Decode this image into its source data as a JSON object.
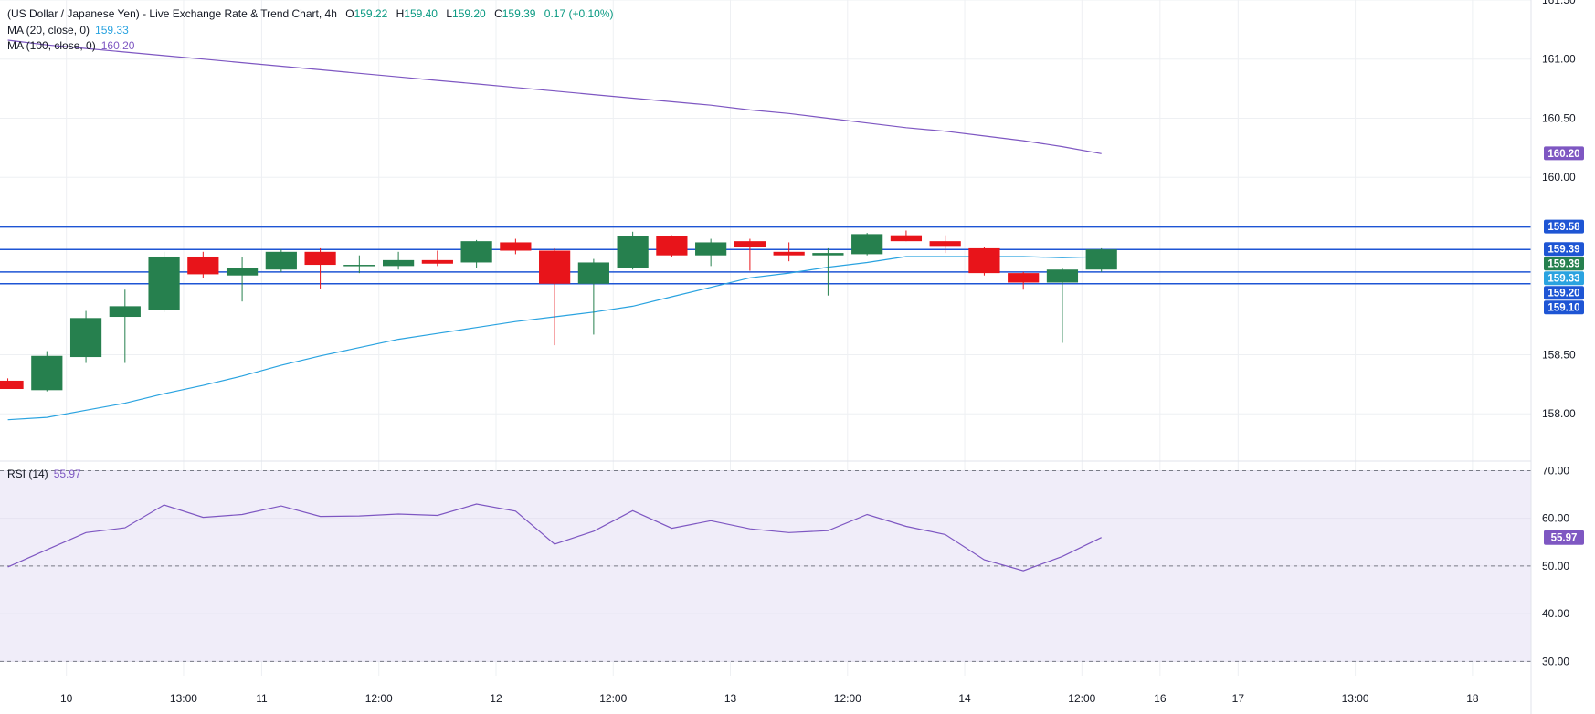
{
  "header": {
    "title": "(US Dollar / Japanese Yen) - Live Exchange Rate & Trend Chart, 4h",
    "ohlc": [
      {
        "label": "O",
        "value": "159.22"
      },
      {
        "label": "H",
        "value": "159.40"
      },
      {
        "label": "L",
        "value": "159.20"
      },
      {
        "label": "C",
        "value": "159.39"
      }
    ],
    "change": "0.17 (+0.10%)"
  },
  "indicators": {
    "ma20": {
      "label": "MA (20, close, 0)",
      "value": "159.33"
    },
    "ma100": {
      "label": "MA (100, close, 0)",
      "value": "160.20"
    },
    "rsi": {
      "label": "RSI (14)",
      "value": "55.97"
    }
  },
  "colors": {
    "up": "#26804e",
    "down": "#e8141a",
    "ma20": "#2aa3e0",
    "ma100": "#7e57c2",
    "rsi": "#7e57c2",
    "level_line": "#1e55d4",
    "grid": "#eef0f3",
    "rsi_band": "#f0edf9",
    "axis_text": "#131722"
  },
  "chart_data": [
    {
      "type": "candlestick",
      "title": "(US Dollar / Japanese Yen) - Live Exchange Rate & Trend Chart, 4h",
      "interval": "4h",
      "ylim": [
        157.6,
        161.5
      ],
      "y_ticks": [
        "161.50",
        "161.00",
        "160.50",
        "160.00",
        "158.50",
        "158.00"
      ],
      "x_ticks": [
        "10",
        "13:00",
        "11",
        "12:00",
        "12",
        "12:00",
        "13",
        "12:00",
        "14",
        "12:00",
        "16",
        "17",
        "13:00",
        "18"
      ],
      "x_tick_index": [
        1.5,
        4.5,
        6.5,
        9.5,
        12.5,
        15.5,
        18.5,
        21.5,
        24.5,
        27.5,
        29.5,
        31.5,
        34.5,
        37.5
      ],
      "x_index_range": [
        -0.2,
        39.0
      ],
      "candles": [
        {
          "o": 158.28,
          "h": 158.3,
          "l": 158.21,
          "c": 158.21
        },
        {
          "o": 158.2,
          "h": 158.53,
          "l": 158.19,
          "c": 158.49
        },
        {
          "o": 158.48,
          "h": 158.87,
          "l": 158.43,
          "c": 158.81
        },
        {
          "o": 158.82,
          "h": 159.05,
          "l": 158.43,
          "c": 158.91
        },
        {
          "o": 158.88,
          "h": 159.37,
          "l": 158.86,
          "c": 159.33
        },
        {
          "o": 159.33,
          "h": 159.37,
          "l": 159.15,
          "c": 159.18
        },
        {
          "o": 159.17,
          "h": 159.33,
          "l": 158.95,
          "c": 159.23
        },
        {
          "o": 159.22,
          "h": 159.39,
          "l": 159.2,
          "c": 159.37
        },
        {
          "o": 159.37,
          "h": 159.4,
          "l": 159.06,
          "c": 159.26
        },
        {
          "o": 159.26,
          "h": 159.34,
          "l": 159.19,
          "c": 159.26
        },
        {
          "o": 159.25,
          "h": 159.37,
          "l": 159.22,
          "c": 159.3
        },
        {
          "o": 159.3,
          "h": 159.38,
          "l": 159.25,
          "c": 159.27
        },
        {
          "o": 159.28,
          "h": 159.47,
          "l": 159.23,
          "c": 159.46
        },
        {
          "o": 159.45,
          "h": 159.48,
          "l": 159.35,
          "c": 159.38
        },
        {
          "o": 159.38,
          "h": 159.4,
          "l": 158.58,
          "c": 159.1
        },
        {
          "o": 159.1,
          "h": 159.31,
          "l": 158.67,
          "c": 159.28
        },
        {
          "o": 159.23,
          "h": 159.54,
          "l": 159.22,
          "c": 159.5
        },
        {
          "o": 159.5,
          "h": 159.51,
          "l": 159.33,
          "c": 159.34
        },
        {
          "o": 159.34,
          "h": 159.48,
          "l": 159.25,
          "c": 159.45
        },
        {
          "o": 159.46,
          "h": 159.48,
          "l": 159.21,
          "c": 159.41
        },
        {
          "o": 159.37,
          "h": 159.45,
          "l": 159.29,
          "c": 159.34
        },
        {
          "o": 159.34,
          "h": 159.4,
          "l": 159.0,
          "c": 159.36
        },
        {
          "o": 159.35,
          "h": 159.53,
          "l": 159.34,
          "c": 159.52
        },
        {
          "o": 159.51,
          "h": 159.55,
          "l": 159.46,
          "c": 159.46
        },
        {
          "o": 159.46,
          "h": 159.51,
          "l": 159.36,
          "c": 159.42
        },
        {
          "o": 159.4,
          "h": 159.41,
          "l": 159.17,
          "c": 159.19
        },
        {
          "o": 159.19,
          "h": 159.2,
          "l": 159.05,
          "c": 159.11
        },
        {
          "o": 159.11,
          "h": 159.23,
          "l": 158.6,
          "c": 159.22
        },
        {
          "o": 159.22,
          "h": 159.4,
          "l": 159.2,
          "c": 159.39
        }
      ],
      "series": [
        {
          "name": "MA (20, close, 0)",
          "values": [
            157.95,
            157.97,
            158.03,
            158.09,
            158.17,
            158.24,
            158.32,
            158.41,
            158.49,
            158.56,
            158.63,
            158.68,
            158.73,
            158.78,
            158.82,
            158.86,
            158.91,
            158.99,
            159.07,
            159.15,
            159.19,
            159.24,
            159.28,
            159.33,
            159.33,
            159.33,
            159.33,
            159.32,
            159.33
          ]
        },
        {
          "name": "MA (100, close, 0)",
          "values": [
            161.16,
            161.12,
            161.09,
            161.06,
            161.03,
            161.0,
            160.97,
            160.94,
            160.91,
            160.88,
            160.85,
            160.82,
            160.79,
            160.76,
            160.73,
            160.7,
            160.67,
            160.64,
            160.61,
            160.57,
            160.54,
            160.5,
            160.46,
            160.42,
            160.39,
            160.35,
            160.31,
            160.26,
            160.2
          ]
        }
      ],
      "horizontal_lines": [
        159.58,
        159.39,
        159.2,
        159.1
      ],
      "price_labels": [
        {
          "value": 160.2,
          "text": "160.20",
          "color": "#7e57c2"
        },
        {
          "value": 159.58,
          "text": "159.58",
          "color": "#1e55d4"
        },
        {
          "value": 159.39,
          "text": "159.39",
          "color": "#1e55d4"
        },
        {
          "value": 159.39,
          "text": "159.39",
          "color": "#26804e"
        },
        {
          "value": 159.33,
          "text": "159.33",
          "color": "#2aa3e0"
        },
        {
          "value": 159.2,
          "text": "159.20",
          "color": "#1e55d4"
        },
        {
          "value": 159.1,
          "text": "159.10",
          "color": "#1e55d4"
        }
      ]
    },
    {
      "type": "line",
      "title": "RSI (14)",
      "ylim": [
        27,
        72
      ],
      "y_ticks": [
        "70.00",
        "60.00",
        "50.00",
        "40.00",
        "30.00"
      ],
      "band": [
        30,
        70
      ],
      "dashed_levels": [
        70,
        50,
        30
      ],
      "series": [
        {
          "name": "RSI (14)",
          "values": [
            49.8,
            53.4,
            57.0,
            58.0,
            62.8,
            60.2,
            60.8,
            62.6,
            60.4,
            60.5,
            60.9,
            60.6,
            63.0,
            61.5,
            54.6,
            57.3,
            61.6,
            57.9,
            59.5,
            57.8,
            57.0,
            57.4,
            60.8,
            58.3,
            56.6,
            51.3,
            49.0,
            52.0,
            55.97
          ]
        }
      ],
      "last_label": {
        "text": "55.97",
        "color": "#7e57c2"
      }
    }
  ]
}
